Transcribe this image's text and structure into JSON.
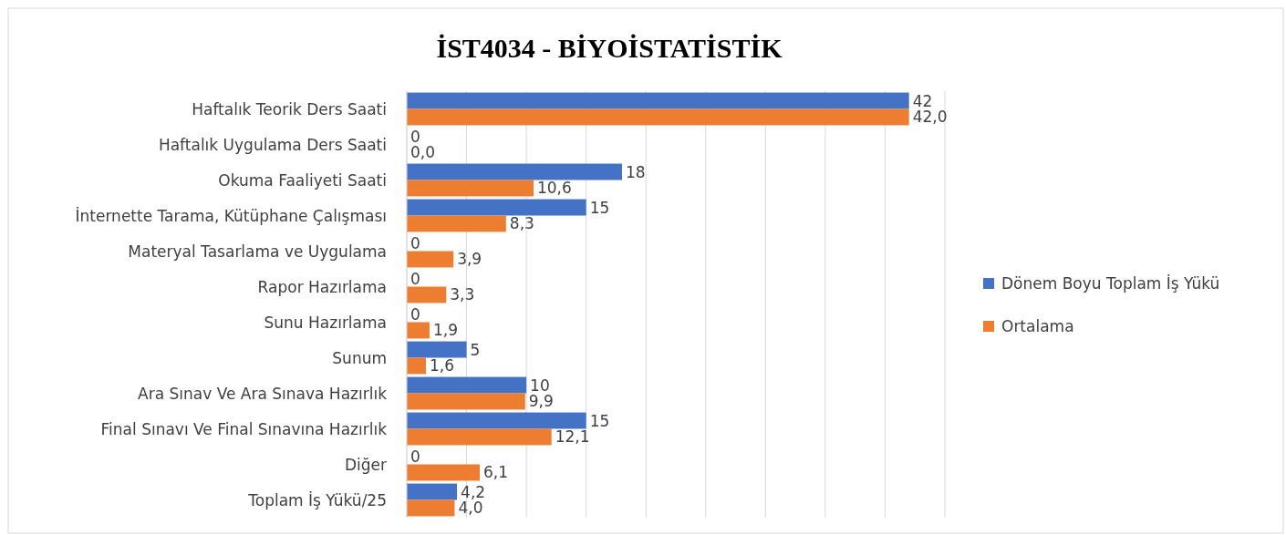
{
  "chart_data": {
    "type": "bar",
    "orientation": "horizontal",
    "title": "İST4034 - BİYOİSTATİSTİK",
    "categories": [
      "Haftalık Teorik Ders Saati",
      "Haftalık Uygulama Ders Saati",
      "Okuma Faaliyeti Saati",
      "İnternette Tarama, Kütüphane Çalışması",
      "Materyal Tasarlama ve Uygulama",
      "Rapor Hazırlama",
      "Sunu Hazırlama",
      "Sunum",
      "Ara Sınav Ve Ara Sınava Hazırlık",
      "Final Sınavı Ve Final Sınavına Hazırlık",
      "Diğer",
      "Toplam İş Yükü/25"
    ],
    "series": [
      {
        "name": "Dönem Boyu Toplam İş Yükü",
        "color": "#4472c4",
        "values": [
          42,
          0,
          18,
          15,
          0,
          0,
          0,
          5,
          10,
          15,
          0,
          4.2
        ],
        "value_labels": [
          "42",
          "0",
          "18",
          "15",
          "0",
          "0",
          "0",
          "5",
          "10",
          "15",
          "0",
          "4,2"
        ]
      },
      {
        "name": "Ortalama",
        "color": "#ed7d31",
        "values": [
          42.0,
          0.0,
          10.6,
          8.3,
          3.9,
          3.3,
          1.9,
          1.6,
          9.9,
          12.1,
          6.1,
          4.0
        ],
        "value_labels": [
          "42,0",
          "0,0",
          "10,6",
          "8,3",
          "3,9",
          "3,3",
          "1,9",
          "1,6",
          "9,9",
          "12,1",
          "6,1",
          "4,0"
        ]
      }
    ],
    "xlim": [
      0,
      45
    ],
    "xticks": [
      {
        "value": 0,
        "label": null
      },
      {
        "value": 5,
        "label": null
      },
      {
        "value": 10,
        "label": null
      },
      {
        "value": 15,
        "label": null
      },
      {
        "value": 20,
        "label": null
      },
      {
        "value": 25,
        "label": null
      },
      {
        "value": 30,
        "label": null
      },
      {
        "value": 35,
        "label": null
      },
      {
        "value": 40,
        "label": null
      },
      {
        "value": 45,
        "label": null
      }
    ],
    "grid": "x",
    "legend": "right",
    "tick_labels": "y"
  }
}
